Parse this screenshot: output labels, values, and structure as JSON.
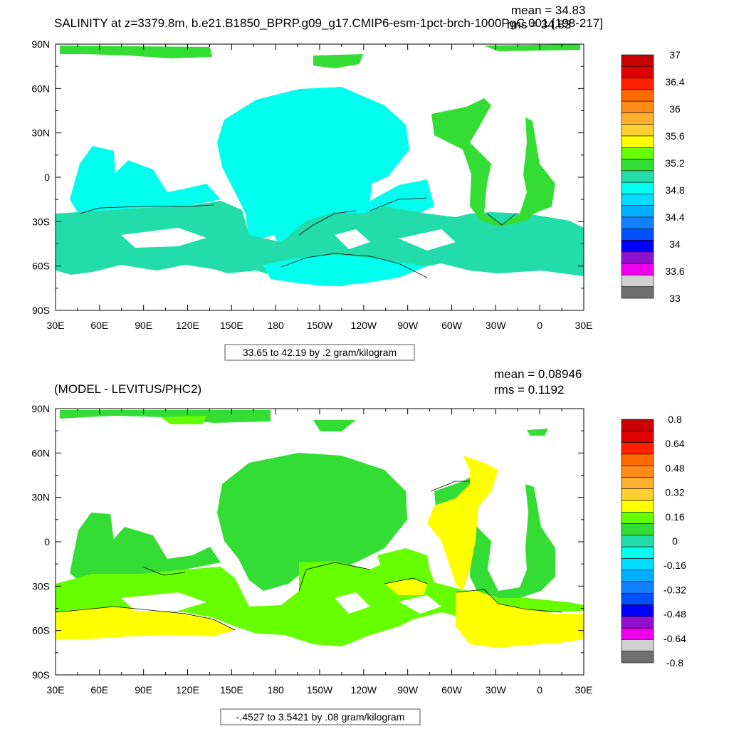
{
  "panels": [
    {
      "title": "SALINITY at z=3379.8m, b.e21.B1850_BPRP.g09_g17.CMIP6-esm-1pct-brch-1000PgC.001 [198-217]",
      "mean_label": "mean = 34.83",
      "rms_label": "rms = 34.83",
      "contour_info": "33.65 to 42.19 by .2 gram/kilogram",
      "lat_labels": [
        "90N",
        "60N",
        "30N",
        "0",
        "30S",
        "60S",
        "90S"
      ],
      "lon_labels": [
        "30E",
        "60E",
        "90E",
        "120E",
        "150E",
        "180",
        "150W",
        "120W",
        "90W",
        "60W",
        "30W",
        "0",
        "30E"
      ],
      "colorbar": {
        "labels": [
          "37",
          "36.4",
          "36",
          "35.6",
          "35.2",
          "34.8",
          "34.4",
          "34",
          "33.6",
          "33"
        ],
        "colors": [
          "#c80000",
          "#e00000",
          "#ff2000",
          "#ff6a00",
          "#ff8c1a",
          "#ffb030",
          "#ffd030",
          "#ffff00",
          "#66ff00",
          "#33dd33",
          "#22ddaa",
          "#00ffee",
          "#00ddff",
          "#00b0ff",
          "#1080ff",
          "#0050ff",
          "#0000ff",
          "#9010d0",
          "#ee00ee",
          "#d0d0d0",
          "#707070"
        ]
      }
    },
    {
      "title": "(MODEL - LEVITUS/PHC2)",
      "mean_label": "mean = 0.08946",
      "rms_label": "rms = 0.1192",
      "contour_info": "-.4527 to 3.5421 by .08 gram/kilogram",
      "lat_labels": [
        "90N",
        "60N",
        "30N",
        "0",
        "30S",
        "60S",
        "90S"
      ],
      "lon_labels": [
        "30E",
        "60E",
        "90E",
        "120E",
        "150E",
        "180",
        "150W",
        "120W",
        "90W",
        "60W",
        "30W",
        "0",
        "30E"
      ],
      "colorbar": {
        "labels": [
          "0.8",
          "0.64",
          "0.48",
          "0.32",
          "0.16",
          "0",
          "-0.16",
          "-0.32",
          "-0.48",
          "-0.64",
          "-0.8"
        ],
        "colors": [
          "#c80000",
          "#e00000",
          "#ff2000",
          "#ff6a00",
          "#ff8c1a",
          "#ffb030",
          "#ffd030",
          "#ffff00",
          "#66ff00",
          "#33dd33",
          "#22ddaa",
          "#00ffee",
          "#00ddff",
          "#00b0ff",
          "#1080ff",
          "#0050ff",
          "#0000ff",
          "#9010d0",
          "#ee00ee",
          "#d0d0d0",
          "#707070"
        ]
      }
    }
  ],
  "field_colors": {
    "top_main": "#00ffee",
    "top_south": "#22ddaa",
    "top_atlantic": "#33dd33",
    "top_arctic": "#33dd33",
    "bottom_green": "#33dd33",
    "bottom_lime": "#66ff00",
    "bottom_yellow": "#ffff00"
  }
}
